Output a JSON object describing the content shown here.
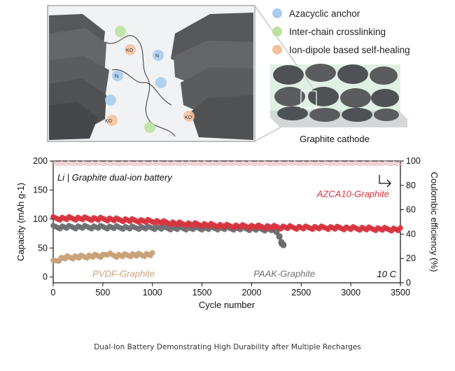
{
  "schematic": {
    "legend": [
      {
        "label": "Azacyclic anchor",
        "color": "#a9cdf0"
      },
      {
        "label": "Inter-chain crosslinking",
        "color": "#b9e39a"
      },
      {
        "label": "Ion-dipole based self-healing",
        "color": "#f4c29a"
      }
    ],
    "cathode_label": "Graphite cathode",
    "ko_label": "KO",
    "n_label": "N",
    "graphite_color": "#5d5f60"
  },
  "caption": "Dual-Ion Battery Demonstrating High Durability after Multiple Recharges",
  "chart_data": {
    "type": "scatter",
    "title": "Li | Graphite dual-ion battery",
    "annotation": "10 C",
    "xlabel": "Cycle number",
    "ylabel_left": "Capacity (mAh g-1)",
    "ylabel_right": "Coulombic efficiency (%)",
    "xlim": [
      0,
      3500
    ],
    "ylim_left": [
      -10,
      200
    ],
    "ylim_right": [
      0,
      100
    ],
    "xticks": [
      0,
      500,
      1000,
      1500,
      2000,
      2500,
      3000,
      3500
    ],
    "yticks_left": [
      0,
      50,
      100,
      150,
      200
    ],
    "yticks_right": [
      0,
      20,
      40,
      60,
      80,
      100
    ],
    "series": [
      {
        "name": "AZCA10-Graphite",
        "axis": "left",
        "color": "#d8343f",
        "x": [
          0,
          250,
          500,
          750,
          1000,
          1250,
          1500,
          1750,
          2000,
          2250,
          2500,
          2750,
          3000,
          3250,
          3500
        ],
        "y": [
          101,
          101,
          100,
          98,
          96,
          92,
          90,
          88,
          87,
          86,
          85,
          85,
          84,
          83,
          82
        ]
      },
      {
        "name": "PAAK-Graphite",
        "axis": "left",
        "color": "#6e6f72",
        "x": [
          0,
          250,
          500,
          750,
          1000,
          1250,
          1500,
          1750,
          2000,
          2200,
          2250,
          2280,
          2300,
          2320
        ],
        "y": [
          86,
          86,
          86,
          85,
          85,
          84,
          84,
          84,
          83,
          82,
          78,
          70,
          60,
          55
        ]
      },
      {
        "name": "PVDF-Graphite",
        "axis": "left",
        "color": "#c9a27a",
        "x": [
          0,
          100,
          200,
          300,
          400,
          500,
          550,
          600,
          700,
          800,
          900,
          1000
        ],
        "y": [
          26,
          33,
          34,
          35,
          36,
          37,
          40,
          37,
          37,
          38,
          38,
          39
        ]
      },
      {
        "name": "Coulombic efficiency",
        "axis": "right",
        "color": "#e7b7bd",
        "x": [
          0,
          500,
          1000,
          1500,
          2000,
          2500,
          3000,
          3500
        ],
        "y": [
          98,
          98,
          98,
          98,
          98,
          98,
          98,
          98
        ]
      }
    ],
    "grid": false
  }
}
